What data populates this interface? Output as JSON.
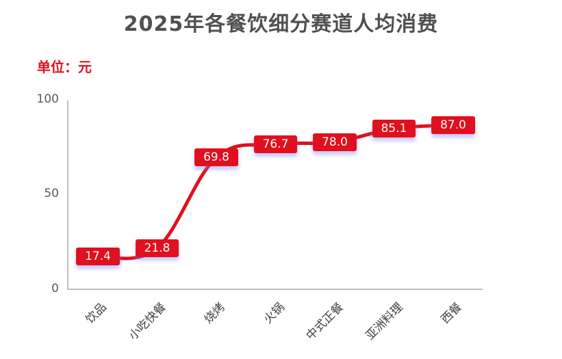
{
  "title": "2025年各餐饮细分赛道人均消费",
  "unit_label": "单位：元",
  "colors": {
    "series": "#e0101e",
    "axis": "#bfbfbf",
    "title": "#505050",
    "unit": "#e0101e"
  },
  "y_ticks": [
    "100",
    "50",
    "0"
  ],
  "chart_data": {
    "type": "line",
    "title": "2025年各餐饮细分赛道人均消费",
    "subtitle": "单位：元",
    "xlabel": "",
    "ylabel": "",
    "ylim": [
      0,
      100
    ],
    "yticks": [
      0,
      50,
      100
    ],
    "grid": false,
    "legend": "none",
    "smooth": true,
    "categories": [
      "饮品",
      "小吃快餐",
      "烧烤",
      "火锅",
      "中式正餐",
      "亚洲料理",
      "西餐"
    ],
    "series": [
      {
        "name": "人均消费",
        "values": [
          17.4,
          21.8,
          69.8,
          76.7,
          78.0,
          85.1,
          87.0
        ]
      }
    ],
    "data_labels": [
      "17.4",
      "21.8",
      "69.8",
      "76.7",
      "78.0",
      "85.1",
      "87.0"
    ]
  }
}
